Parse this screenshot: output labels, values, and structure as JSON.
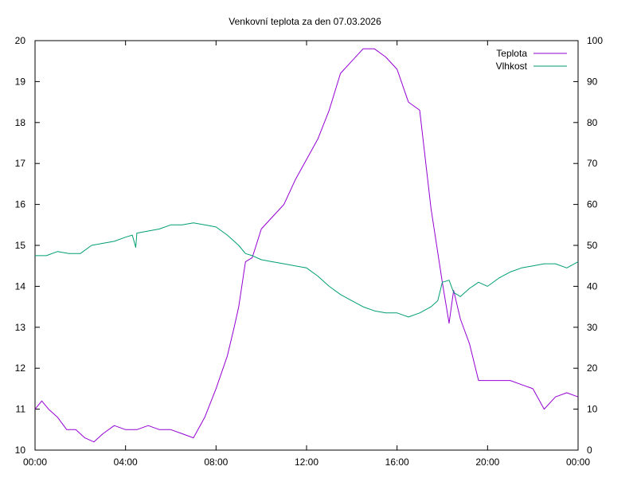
{
  "chart_data": {
    "type": "line",
    "title": "Venkovní teplota za den 07.03.2026",
    "xlabel": "",
    "ylabel": "",
    "y2label": "",
    "legend_position": "top-right",
    "grid": false,
    "xlim": [
      0,
      24
    ],
    "ylim": [
      10,
      20
    ],
    "y2lim": [
      0,
      100
    ],
    "x_ticks": [
      "00:00",
      "04:00",
      "08:00",
      "12:00",
      "16:00",
      "20:00",
      "00:00"
    ],
    "y_ticks": [
      "10",
      "11",
      "12",
      "13",
      "14",
      "15",
      "16",
      "17",
      "18",
      "19",
      "20"
    ],
    "y2_ticks": [
      "0",
      "10",
      "20",
      "30",
      "40",
      "50",
      "60",
      "70",
      "80",
      "90",
      "100"
    ],
    "colors": {
      "Teplota": "#9400d3",
      "Vlhkost": "#009e73"
    },
    "series": [
      {
        "name": "Teplota",
        "axis": "left",
        "x": [
          0.0,
          0.3,
          0.6,
          1.0,
          1.4,
          1.8,
          2.2,
          2.6,
          3.0,
          3.5,
          4.0,
          4.5,
          5.0,
          5.5,
          6.0,
          6.5,
          7.0,
          7.5,
          8.0,
          8.5,
          8.8,
          9.0,
          9.3,
          9.6,
          10.0,
          10.5,
          11.0,
          11.5,
          12.0,
          12.5,
          13.0,
          13.5,
          14.0,
          14.5,
          15.0,
          15.5,
          16.0,
          16.5,
          17.0,
          17.5,
          18.0,
          18.3,
          18.5,
          18.8,
          19.2,
          19.6,
          20.0,
          20.5,
          21.0,
          21.5,
          22.0,
          22.5,
          23.0,
          23.5,
          24.0
        ],
        "values": [
          11.0,
          11.2,
          11.0,
          10.8,
          10.5,
          10.5,
          10.3,
          10.2,
          10.4,
          10.6,
          10.5,
          10.5,
          10.6,
          10.5,
          10.5,
          10.4,
          10.3,
          10.8,
          11.5,
          12.3,
          13.0,
          13.5,
          14.6,
          14.7,
          15.4,
          15.7,
          16.0,
          16.6,
          17.1,
          17.6,
          18.3,
          19.2,
          19.5,
          19.8,
          19.8,
          19.6,
          19.3,
          18.5,
          18.3,
          15.9,
          14.1,
          13.1,
          13.9,
          13.2,
          12.6,
          11.7,
          11.7,
          11.7,
          11.7,
          11.6,
          11.5,
          11.0,
          11.3,
          11.4,
          11.3
        ]
      },
      {
        "name": "Vlhkost",
        "axis": "right",
        "x": [
          0.0,
          0.5,
          1.0,
          1.5,
          2.0,
          2.5,
          3.0,
          3.5,
          4.0,
          4.3,
          4.45,
          4.5,
          5.0,
          5.5,
          6.0,
          6.5,
          7.0,
          7.5,
          8.0,
          8.5,
          9.0,
          9.3,
          9.6,
          10.0,
          10.5,
          11.0,
          11.5,
          12.0,
          12.5,
          13.0,
          13.5,
          14.0,
          14.5,
          15.0,
          15.5,
          16.0,
          16.5,
          17.0,
          17.5,
          17.8,
          18.0,
          18.3,
          18.5,
          18.8,
          19.2,
          19.6,
          20.0,
          20.5,
          21.0,
          21.5,
          22.0,
          22.5,
          23.0,
          23.5,
          24.0
        ],
        "values": [
          47.5,
          47.5,
          48.5,
          48.0,
          48.0,
          50.0,
          50.5,
          51.0,
          52.0,
          52.5,
          49.5,
          53.0,
          53.5,
          54.0,
          55.0,
          55.0,
          55.5,
          55.0,
          54.5,
          52.5,
          50.0,
          48.0,
          47.5,
          46.5,
          46.0,
          45.5,
          45.0,
          44.5,
          42.5,
          40.0,
          38.0,
          36.5,
          35.0,
          34.0,
          33.5,
          33.5,
          32.5,
          33.5,
          35.0,
          36.5,
          41.0,
          41.5,
          38.5,
          37.5,
          39.5,
          41.0,
          40.0,
          42.0,
          43.5,
          44.5,
          45.0,
          45.5,
          45.5,
          44.5,
          46.0
        ]
      }
    ]
  }
}
